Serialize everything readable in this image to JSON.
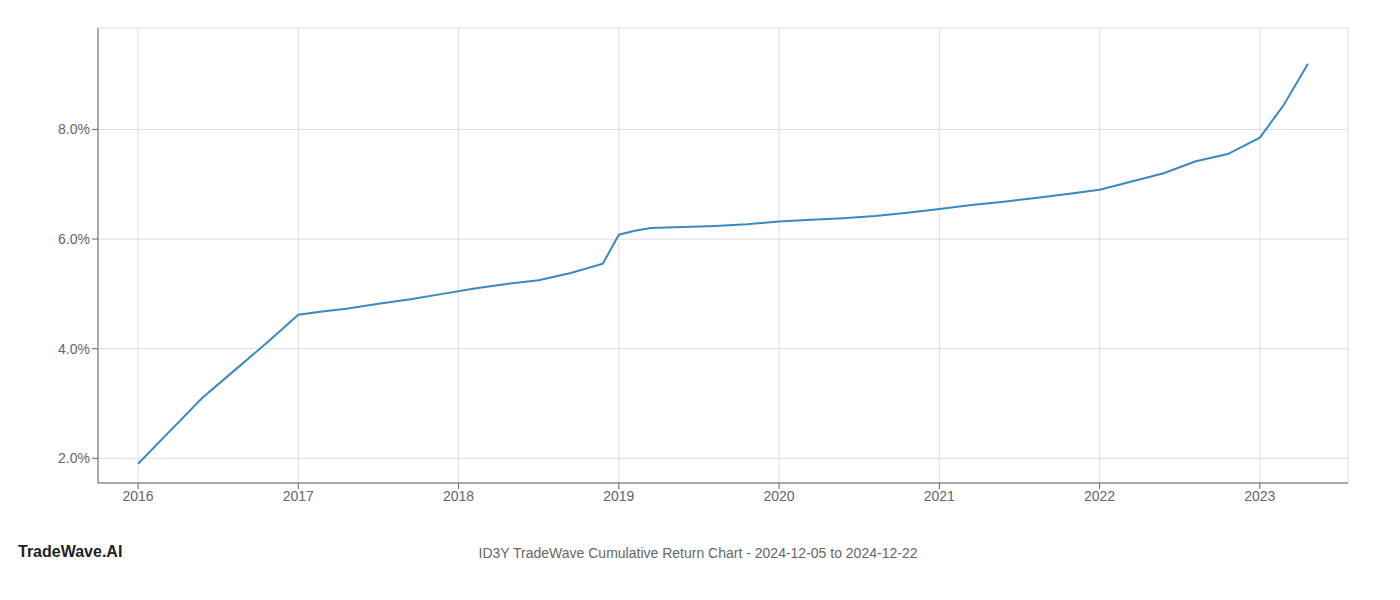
{
  "chart_data": {
    "type": "line",
    "title": "ID3Y TradeWave Cumulative Return Chart - 2024-12-05 to 2024-12-22",
    "annotations": [
      "TradeWave.AI"
    ],
    "color": "#3a8abf",
    "x": [
      2016.0,
      2016.2,
      2016.4,
      2016.6,
      2016.8,
      2017.0,
      2017.15,
      2017.3,
      2017.5,
      2017.7,
      2017.9,
      2018.1,
      2018.3,
      2018.5,
      2018.7,
      2018.9,
      2019.0,
      2019.1,
      2019.2,
      2019.4,
      2019.6,
      2019.8,
      2020.0,
      2020.2,
      2020.4,
      2020.6,
      2020.8,
      2021.0,
      2021.2,
      2021.4,
      2021.6,
      2021.8,
      2022.0,
      2022.2,
      2022.4,
      2022.6,
      2022.8,
      2023.0,
      2023.15,
      2023.3
    ],
    "values": [
      1.9,
      2.5,
      3.1,
      3.6,
      4.1,
      4.62,
      4.68,
      4.73,
      4.82,
      4.9,
      5.0,
      5.1,
      5.18,
      5.25,
      5.38,
      5.55,
      6.08,
      6.15,
      6.2,
      6.22,
      6.24,
      6.27,
      6.32,
      6.35,
      6.38,
      6.42,
      6.48,
      6.55,
      6.62,
      6.68,
      6.75,
      6.82,
      6.9,
      7.05,
      7.2,
      7.42,
      7.55,
      7.85,
      8.45,
      9.2
    ],
    "xlim": [
      2015.75,
      2023.55
    ],
    "xticks": [
      2016,
      2017,
      2018,
      2019,
      2020,
      2021,
      2022,
      2023
    ],
    "ylim": [
      1.55,
      9.85
    ],
    "yticks": [
      {
        "value": 2.0,
        "label": "2.0%"
      },
      {
        "value": 4.0,
        "label": "4.0%"
      },
      {
        "value": 6.0,
        "label": "6.0%"
      },
      {
        "value": 8.0,
        "label": "8.0%"
      }
    ],
    "grid": true
  }
}
